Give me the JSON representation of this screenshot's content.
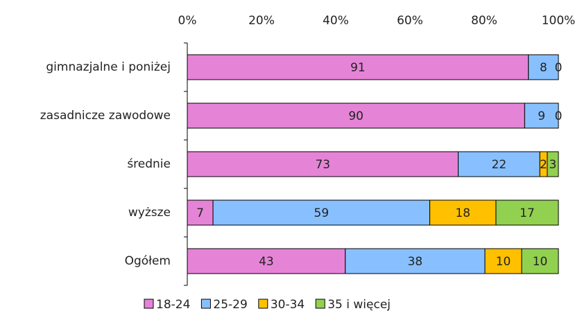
{
  "chart_data": {
    "type": "stacked_bar_100_horizontal",
    "categories": [
      "gimnazjalne i poniżej",
      "zasadnicze zawodowe",
      "średnie",
      "wyższe",
      "Ogółem"
    ],
    "series": [
      {
        "name": "18-24",
        "color": "#e584d6",
        "values": [
          91,
          90,
          73,
          7,
          43
        ]
      },
      {
        "name": "25-29",
        "color": "#88c0ff",
        "values": [
          8,
          9,
          22,
          59,
          38
        ]
      },
      {
        "name": "30-34",
        "color": "#ffc000",
        "values": [
          0,
          0,
          2,
          18,
          10
        ]
      },
      {
        "name": "35 i więcej",
        "color": "#92d050",
        "values": [
          null,
          null,
          3,
          17,
          10
        ]
      }
    ],
    "xlim": [
      0,
      100
    ],
    "xticks": [
      {
        "value": 0,
        "label": "0%"
      },
      {
        "value": 20,
        "label": "20%"
      },
      {
        "value": 40,
        "label": "40%"
      },
      {
        "value": 60,
        "label": "60%"
      },
      {
        "value": 80,
        "label": "80%"
      },
      {
        "value": 100,
        "label": "100%"
      }
    ],
    "legend": "bottom"
  }
}
